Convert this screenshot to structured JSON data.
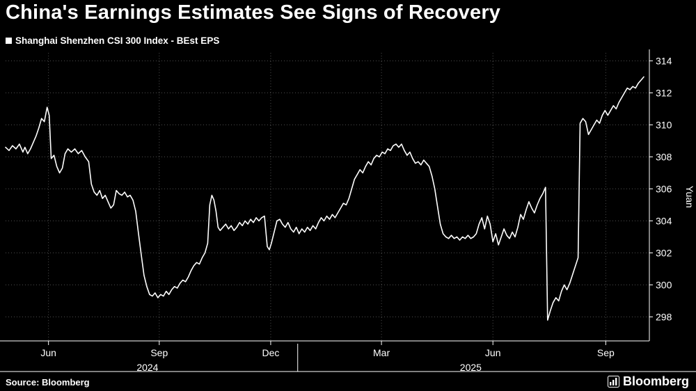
{
  "title": "China's Earnings Estimates See Signs of Recovery",
  "legend": {
    "label": "Shanghai Shenzhen CSI 300 Index - BEst EPS"
  },
  "footer": {
    "source": "Source: Bloomberg",
    "logo": "Bloomberg"
  },
  "colors": {
    "background": "#000000",
    "line": "#ffffff",
    "grid": "#4d4d4d",
    "text": "#ffffff"
  },
  "chart_data": {
    "type": "line",
    "title": "China's Earnings Estimates See Signs of Recovery",
    "subtitle": "Shanghai Shenzhen CSI 300 Index - BEst EPS",
    "xlabel": "",
    "ylabel": "Yuan",
    "grid": true,
    "legend_position": "top-left",
    "x_range": [
      0,
      930
    ],
    "y_range": [
      296.5,
      314.5
    ],
    "y_ticks": [
      298,
      300,
      302,
      304,
      306,
      308,
      310,
      312,
      314
    ],
    "x_ticks": [
      {
        "label": "Jun",
        "x": 62
      },
      {
        "label": "Sep",
        "x": 222
      },
      {
        "label": "Dec",
        "x": 383
      },
      {
        "label": "Mar",
        "x": 543
      },
      {
        "label": "Jun",
        "x": 704
      },
      {
        "label": "Sep",
        "x": 867
      }
    ],
    "year_labels": [
      {
        "label": "2024",
        "x": 205
      },
      {
        "label": "2025",
        "x": 672
      }
    ],
    "year_divider_x": 422,
    "series": [
      {
        "name": "Shanghai Shenzhen CSI 300 Index - BEst EPS",
        "color": "#ffffff",
        "points": [
          [
            0,
            308.6
          ],
          [
            5,
            308.4
          ],
          [
            10,
            308.7
          ],
          [
            15,
            308.5
          ],
          [
            20,
            308.8
          ],
          [
            25,
            308.3
          ],
          [
            28,
            308.6
          ],
          [
            32,
            308.2
          ],
          [
            36,
            308.5
          ],
          [
            40,
            308.9
          ],
          [
            44,
            309.3
          ],
          [
            48,
            309.8
          ],
          [
            52,
            310.4
          ],
          [
            56,
            310.2
          ],
          [
            60,
            311.1
          ],
          [
            63,
            310.6
          ],
          [
            66,
            307.9
          ],
          [
            70,
            308.1
          ],
          [
            74,
            307.4
          ],
          [
            78,
            307.0
          ],
          [
            82,
            307.3
          ],
          [
            86,
            308.2
          ],
          [
            90,
            308.5
          ],
          [
            95,
            308.3
          ],
          [
            100,
            308.5
          ],
          [
            105,
            308.2
          ],
          [
            110,
            308.4
          ],
          [
            115,
            308.0
          ],
          [
            120,
            307.7
          ],
          [
            124,
            306.3
          ],
          [
            128,
            305.8
          ],
          [
            132,
            305.6
          ],
          [
            136,
            305.9
          ],
          [
            140,
            305.4
          ],
          [
            144,
            305.6
          ],
          [
            148,
            305.2
          ],
          [
            152,
            304.8
          ],
          [
            156,
            305.0
          ],
          [
            160,
            305.9
          ],
          [
            164,
            305.7
          ],
          [
            168,
            305.6
          ],
          [
            172,
            305.8
          ],
          [
            176,
            305.5
          ],
          [
            180,
            305.6
          ],
          [
            184,
            305.3
          ],
          [
            188,
            304.6
          ],
          [
            192,
            303.2
          ],
          [
            196,
            301.9
          ],
          [
            200,
            300.6
          ],
          [
            204,
            299.9
          ],
          [
            208,
            299.4
          ],
          [
            212,
            299.3
          ],
          [
            216,
            299.5
          ],
          [
            220,
            299.2
          ],
          [
            224,
            299.4
          ],
          [
            228,
            299.3
          ],
          [
            232,
            299.6
          ],
          [
            236,
            299.4
          ],
          [
            240,
            299.7
          ],
          [
            244,
            299.9
          ],
          [
            248,
            299.8
          ],
          [
            252,
            300.1
          ],
          [
            256,
            300.3
          ],
          [
            260,
            300.2
          ],
          [
            264,
            300.5
          ],
          [
            268,
            300.9
          ],
          [
            272,
            301.2
          ],
          [
            276,
            301.4
          ],
          [
            280,
            301.3
          ],
          [
            284,
            301.7
          ],
          [
            288,
            302.0
          ],
          [
            292,
            302.6
          ],
          [
            295,
            305.0
          ],
          [
            298,
            305.6
          ],
          [
            301,
            305.3
          ],
          [
            304,
            304.6
          ],
          [
            307,
            303.6
          ],
          [
            310,
            303.4
          ],
          [
            314,
            303.6
          ],
          [
            318,
            303.8
          ],
          [
            322,
            303.5
          ],
          [
            326,
            303.7
          ],
          [
            330,
            303.4
          ],
          [
            334,
            303.6
          ],
          [
            338,
            303.9
          ],
          [
            342,
            303.7
          ],
          [
            346,
            304.0
          ],
          [
            350,
            303.8
          ],
          [
            354,
            304.1
          ],
          [
            358,
            303.9
          ],
          [
            362,
            304.2
          ],
          [
            366,
            304.0
          ],
          [
            370,
            304.2
          ],
          [
            374,
            304.3
          ],
          [
            378,
            302.4
          ],
          [
            381,
            302.2
          ],
          [
            384,
            302.6
          ],
          [
            388,
            303.3
          ],
          [
            392,
            304.0
          ],
          [
            396,
            304.1
          ],
          [
            400,
            303.8
          ],
          [
            404,
            303.6
          ],
          [
            408,
            303.9
          ],
          [
            412,
            303.5
          ],
          [
            416,
            303.3
          ],
          [
            420,
            303.6
          ],
          [
            424,
            303.2
          ],
          [
            428,
            303.5
          ],
          [
            432,
            303.3
          ],
          [
            436,
            303.6
          ],
          [
            440,
            303.4
          ],
          [
            444,
            303.7
          ],
          [
            448,
            303.5
          ],
          [
            452,
            303.9
          ],
          [
            456,
            304.2
          ],
          [
            460,
            304.0
          ],
          [
            464,
            304.3
          ],
          [
            468,
            304.1
          ],
          [
            472,
            304.4
          ],
          [
            476,
            304.2
          ],
          [
            480,
            304.5
          ],
          [
            484,
            304.8
          ],
          [
            488,
            305.1
          ],
          [
            492,
            305.0
          ],
          [
            496,
            305.4
          ],
          [
            500,
            306.0
          ],
          [
            504,
            306.6
          ],
          [
            508,
            306.9
          ],
          [
            512,
            307.2
          ],
          [
            516,
            307.0
          ],
          [
            520,
            307.4
          ],
          [
            524,
            307.7
          ],
          [
            528,
            307.5
          ],
          [
            532,
            307.9
          ],
          [
            536,
            308.1
          ],
          [
            540,
            308.0
          ],
          [
            544,
            308.3
          ],
          [
            548,
            308.2
          ],
          [
            552,
            308.5
          ],
          [
            556,
            308.4
          ],
          [
            560,
            308.7
          ],
          [
            564,
            308.8
          ],
          [
            568,
            308.6
          ],
          [
            572,
            308.8
          ],
          [
            576,
            308.4
          ],
          [
            580,
            308.1
          ],
          [
            584,
            308.3
          ],
          [
            588,
            307.9
          ],
          [
            592,
            307.6
          ],
          [
            596,
            307.7
          ],
          [
            600,
            307.5
          ],
          [
            604,
            307.8
          ],
          [
            608,
            307.6
          ],
          [
            612,
            307.4
          ],
          [
            616,
            306.8
          ],
          [
            620,
            306.0
          ],
          [
            624,
            304.9
          ],
          [
            628,
            303.8
          ],
          [
            632,
            303.2
          ],
          [
            636,
            303.0
          ],
          [
            640,
            302.9
          ],
          [
            644,
            303.1
          ],
          [
            648,
            302.9
          ],
          [
            652,
            303.0
          ],
          [
            656,
            302.8
          ],
          [
            660,
            303.0
          ],
          [
            664,
            302.9
          ],
          [
            668,
            303.1
          ],
          [
            672,
            302.9
          ],
          [
            676,
            303.0
          ],
          [
            680,
            303.2
          ],
          [
            684,
            303.8
          ],
          [
            688,
            304.2
          ],
          [
            692,
            303.5
          ],
          [
            696,
            304.3
          ],
          [
            700,
            303.8
          ],
          [
            704,
            302.7
          ],
          [
            708,
            303.2
          ],
          [
            712,
            302.5
          ],
          [
            716,
            303.0
          ],
          [
            720,
            303.5
          ],
          [
            724,
            303.1
          ],
          [
            728,
            302.9
          ],
          [
            732,
            303.3
          ],
          [
            736,
            303.0
          ],
          [
            740,
            303.6
          ],
          [
            744,
            304.4
          ],
          [
            748,
            304.1
          ],
          [
            752,
            304.7
          ],
          [
            756,
            305.2
          ],
          [
            760,
            304.8
          ],
          [
            764,
            304.5
          ],
          [
            768,
            305.0
          ],
          [
            772,
            305.4
          ],
          [
            776,
            305.7
          ],
          [
            780,
            306.1
          ],
          [
            783,
            297.8
          ],
          [
            787,
            298.4
          ],
          [
            791,
            298.9
          ],
          [
            795,
            299.2
          ],
          [
            799,
            299.0
          ],
          [
            803,
            299.6
          ],
          [
            807,
            300.0
          ],
          [
            811,
            299.7
          ],
          [
            815,
            300.1
          ],
          [
            818,
            300.5
          ],
          [
            821,
            300.9
          ],
          [
            824,
            301.3
          ],
          [
            827,
            301.7
          ],
          [
            830,
            310.1
          ],
          [
            834,
            310.4
          ],
          [
            838,
            310.2
          ],
          [
            842,
            309.4
          ],
          [
            846,
            309.7
          ],
          [
            850,
            310.0
          ],
          [
            854,
            310.3
          ],
          [
            858,
            310.1
          ],
          [
            862,
            310.6
          ],
          [
            866,
            310.9
          ],
          [
            870,
            310.6
          ],
          [
            874,
            310.9
          ],
          [
            878,
            311.2
          ],
          [
            882,
            311.0
          ],
          [
            886,
            311.4
          ],
          [
            890,
            311.7
          ],
          [
            894,
            312.0
          ],
          [
            898,
            312.3
          ],
          [
            902,
            312.2
          ],
          [
            906,
            312.4
          ],
          [
            910,
            312.3
          ],
          [
            914,
            312.6
          ],
          [
            918,
            312.8
          ],
          [
            922,
            313.0
          ]
        ]
      }
    ]
  }
}
